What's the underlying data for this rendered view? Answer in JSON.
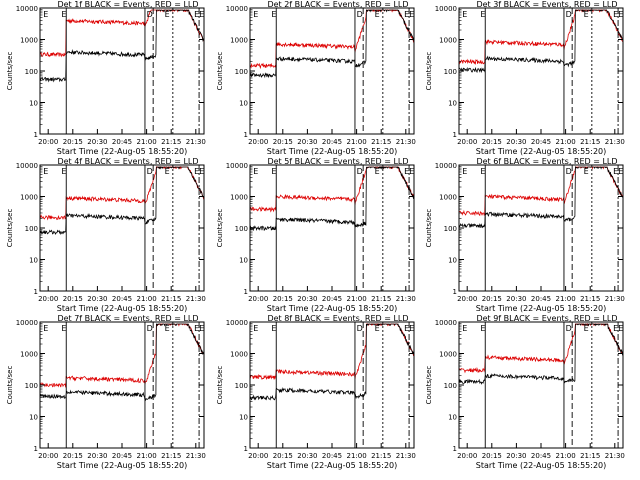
{
  "figure": {
    "ylabel": "Counts/sec",
    "xlabel": "Start Time (22-Aug-05 18:55:20)",
    "series_colors": {
      "events": "#000000",
      "lld": "#dd0000"
    },
    "ytick_labels": [
      "1",
      "10",
      "100",
      "1000",
      "10000"
    ],
    "xtick_labels_a": [
      "20:00",
      "20:15",
      "20:30",
      "20:45",
      "21:00",
      "21:15",
      "21:30"
    ],
    "xtick_labels_b": [
      "20:00",
      "20:15",
      "20:30",
      "20:45",
      "21:00",
      "21:15",
      "21:30"
    ],
    "annotation_labels": [
      "E",
      "E",
      "D",
      "E",
      "E",
      "E"
    ]
  },
  "chart_data": [
    {
      "type": "line",
      "title": "Det 1f BLACK = Events, RED = LLD",
      "events_level": 400,
      "lld_level": 4000,
      "events_pre": 55,
      "lld_pre": 340,
      "ylim": [
        1,
        10000
      ]
    },
    {
      "type": "line",
      "title": "Det 2f BLACK = Events, RED = LLD",
      "events_level": 250,
      "lld_level": 720,
      "events_pre": 75,
      "lld_pre": 150,
      "ylim": [
        1,
        10000
      ]
    },
    {
      "type": "line",
      "title": "Det 3f BLACK = Events, RED = LLD",
      "events_level": 250,
      "lld_level": 850,
      "events_pre": 110,
      "lld_pre": 200,
      "ylim": [
        1,
        10000
      ]
    },
    {
      "type": "line",
      "title": "Det 4f BLACK = Events, RED = LLD",
      "events_level": 250,
      "lld_level": 900,
      "events_pre": 75,
      "lld_pre": 220,
      "ylim": [
        1,
        10000
      ]
    },
    {
      "type": "line",
      "title": "Det 5f BLACK = Events, RED = LLD",
      "events_level": 190,
      "lld_level": 1000,
      "events_pre": 100,
      "lld_pre": 400,
      "ylim": [
        1,
        10000
      ]
    },
    {
      "type": "line",
      "title": "Det 6f BLACK = Events, RED = LLD",
      "events_level": 280,
      "lld_level": 1000,
      "events_pre": 120,
      "lld_pre": 300,
      "ylim": [
        1,
        10000
      ]
    },
    {
      "type": "line",
      "title": "Det 7f BLACK = Events, RED = LLD",
      "events_level": 60,
      "lld_level": 170,
      "events_pre": 45,
      "lld_pre": 100,
      "ylim": [
        1,
        10000
      ]
    },
    {
      "type": "line",
      "title": "Det 8f BLACK = Events, RED = LLD",
      "events_level": 70,
      "lld_level": 270,
      "events_pre": 40,
      "lld_pre": 180,
      "ylim": [
        1,
        10000
      ]
    },
    {
      "type": "line",
      "title": "Det 9f BLACK = Events, RED = LLD",
      "events_level": 200,
      "lld_level": 750,
      "events_pre": 130,
      "lld_pre": 300,
      "ylim": [
        1,
        10000
      ]
    }
  ]
}
